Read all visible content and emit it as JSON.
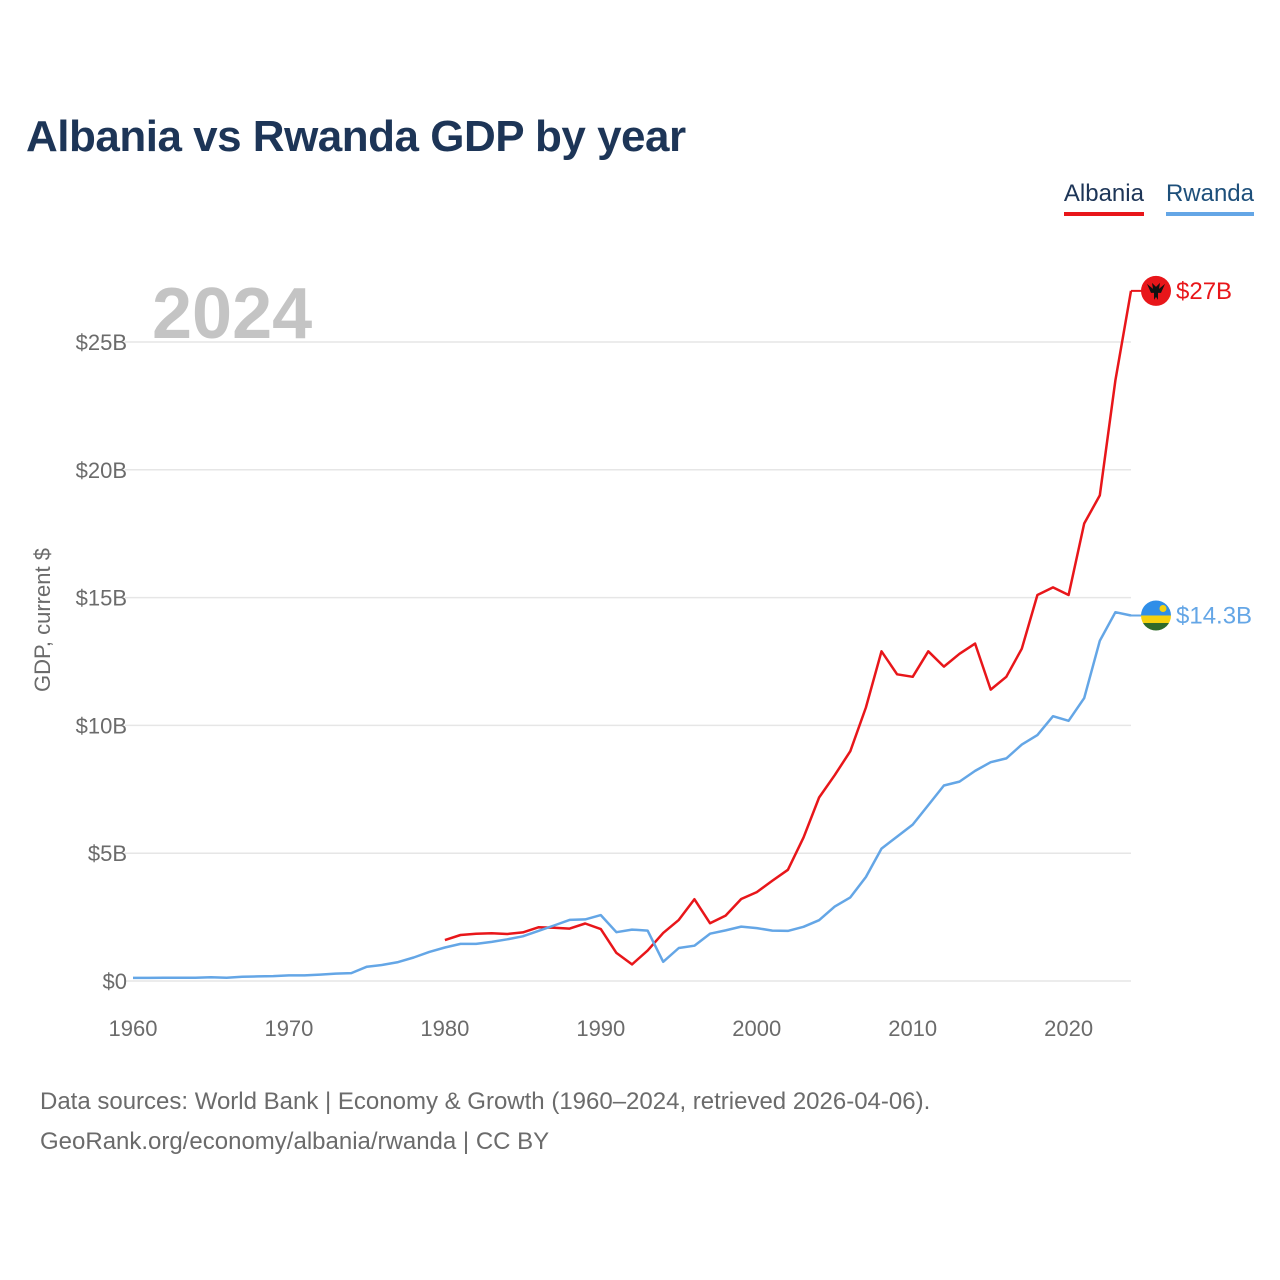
{
  "chart_data": {
    "type": "line",
    "title": "Albania vs Rwanda GDP by year",
    "ylabel": "GDP, current $",
    "xlabel": "",
    "xlim": [
      1960,
      2024
    ],
    "ylim": [
      0,
      28
    ],
    "x_ticks": [
      1960,
      1970,
      1980,
      1990,
      2000,
      2010,
      2020
    ],
    "x_tick_labels": [
      "1960",
      "1970",
      "1980",
      "1990",
      "2000",
      "2010",
      "2020"
    ],
    "y_ticks": [
      0,
      5,
      10,
      15,
      20,
      25
    ],
    "y_tick_labels": [
      "$0",
      "$5B",
      "$10B",
      "$15B",
      "$20B",
      "$25B"
    ],
    "year_watermark": "2024",
    "legend_position": "top-right",
    "series": [
      {
        "name": "Albania",
        "color": "#e8161a",
        "end_label": "$27B",
        "flag_icon": "albania-flag-icon",
        "x": [
          1980,
          1981,
          1982,
          1983,
          1984,
          1985,
          1986,
          1987,
          1988,
          1989,
          1990,
          1991,
          1992,
          1993,
          1994,
          1995,
          1996,
          1997,
          1998,
          1999,
          2000,
          2001,
          2002,
          2003,
          2004,
          2005,
          2006,
          2007,
          2008,
          2009,
          2010,
          2011,
          2012,
          2013,
          2014,
          2015,
          2016,
          2017,
          2018,
          2019,
          2020,
          2021,
          2022,
          2023,
          2024
        ],
        "values": [
          1.6,
          1.8,
          1.85,
          1.87,
          1.84,
          1.9,
          2.1,
          2.08,
          2.05,
          2.25,
          2.03,
          1.1,
          0.65,
          1.19,
          1.88,
          2.39,
          3.2,
          2.26,
          2.56,
          3.21,
          3.48,
          3.92,
          4.35,
          5.61,
          7.18,
          8.05,
          8.99,
          10.7,
          12.9,
          12.0,
          11.9,
          12.9,
          12.3,
          12.8,
          13.2,
          11.4,
          11.9,
          13.0,
          15.1,
          15.4,
          15.1,
          17.9,
          19.0,
          23.5,
          27.0
        ]
      },
      {
        "name": "Rwanda",
        "color": "#64a6e6",
        "end_label": "$14.3B",
        "flag_icon": "rwanda-flag-icon",
        "x": [
          1960,
          1961,
          1962,
          1963,
          1964,
          1965,
          1966,
          1967,
          1968,
          1969,
          1970,
          1971,
          1972,
          1973,
          1974,
          1975,
          1976,
          1977,
          1978,
          1979,
          1980,
          1981,
          1982,
          1983,
          1984,
          1985,
          1986,
          1987,
          1988,
          1989,
          1990,
          1991,
          1992,
          1993,
          1994,
          1995,
          1996,
          1997,
          1998,
          1999,
          2000,
          2001,
          2002,
          2003,
          2004,
          2005,
          2006,
          2007,
          2008,
          2009,
          2010,
          2011,
          2012,
          2013,
          2014,
          2015,
          2016,
          2017,
          2018,
          2019,
          2020,
          2021,
          2022,
          2023,
          2024
        ],
        "values": [
          0.12,
          0.12,
          0.13,
          0.13,
          0.13,
          0.15,
          0.13,
          0.17,
          0.18,
          0.19,
          0.22,
          0.22,
          0.25,
          0.29,
          0.31,
          0.56,
          0.63,
          0.74,
          0.92,
          1.14,
          1.31,
          1.45,
          1.45,
          1.53,
          1.63,
          1.75,
          1.96,
          2.17,
          2.39,
          2.41,
          2.58,
          1.91,
          2.01,
          1.97,
          0.75,
          1.29,
          1.38,
          1.85,
          1.98,
          2.13,
          2.07,
          1.97,
          1.96,
          2.12,
          2.38,
          2.91,
          3.27,
          4.07,
          5.18,
          5.65,
          6.12,
          6.88,
          7.65,
          7.8,
          8.22,
          8.56,
          8.71,
          9.25,
          9.62,
          10.36,
          10.18,
          11.07,
          13.31,
          14.43,
          14.3
        ]
      }
    ]
  },
  "legend": {
    "albania_label": "Albania",
    "rwanda_label": "Rwanda"
  },
  "footer": {
    "line1": "Data sources: World Bank | Economy & Growth (1960–2024, retrieved 2026-04-06).",
    "line2": "GeoRank.org/economy/albania/rwanda | CC BY"
  }
}
